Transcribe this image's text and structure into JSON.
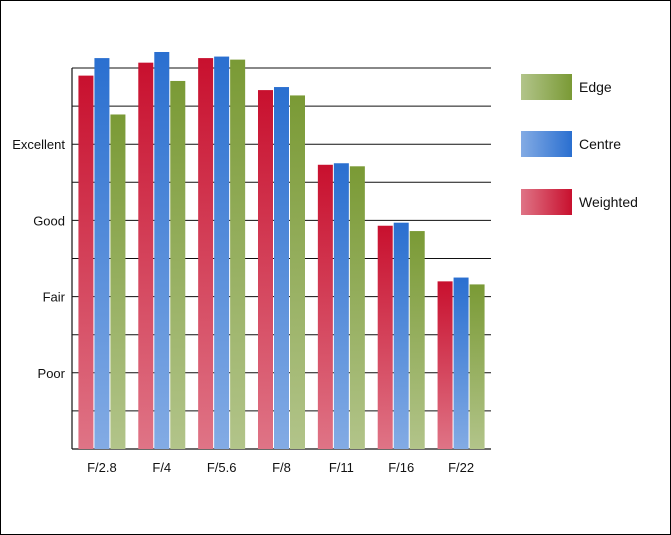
{
  "chart_data": {
    "type": "bar",
    "title": "",
    "xlabel": "",
    "ylabel": "",
    "categories": [
      "F/2.8",
      "F/4",
      "F/5.6",
      "F/8",
      "F/11",
      "F/16",
      "F/22"
    ],
    "y_ticks": [
      {
        "label": "Poor",
        "value": 1
      },
      {
        "label": "Fair",
        "value": 2
      },
      {
        "label": "Good",
        "value": 3
      },
      {
        "label": "Excellent",
        "value": 4
      }
    ],
    "ylim": [
      0,
      5
    ],
    "grid": true,
    "legend_position": "right",
    "series": [
      {
        "name": "Weighted",
        "color": "#c8102e",
        "values": [
          4.9,
          5.07,
          5.13,
          4.71,
          3.73,
          2.93,
          2.2
        ]
      },
      {
        "name": "Centre",
        "color": "#2a6fd0",
        "values": [
          5.13,
          5.21,
          5.15,
          4.75,
          3.75,
          2.97,
          2.25
        ]
      },
      {
        "name": "Edge",
        "color": "#7a9a35",
        "values": [
          4.39,
          4.83,
          5.11,
          4.64,
          3.71,
          2.86,
          2.16
        ]
      }
    ],
    "legend_order": [
      "Edge",
      "Centre",
      "Weighted"
    ]
  }
}
